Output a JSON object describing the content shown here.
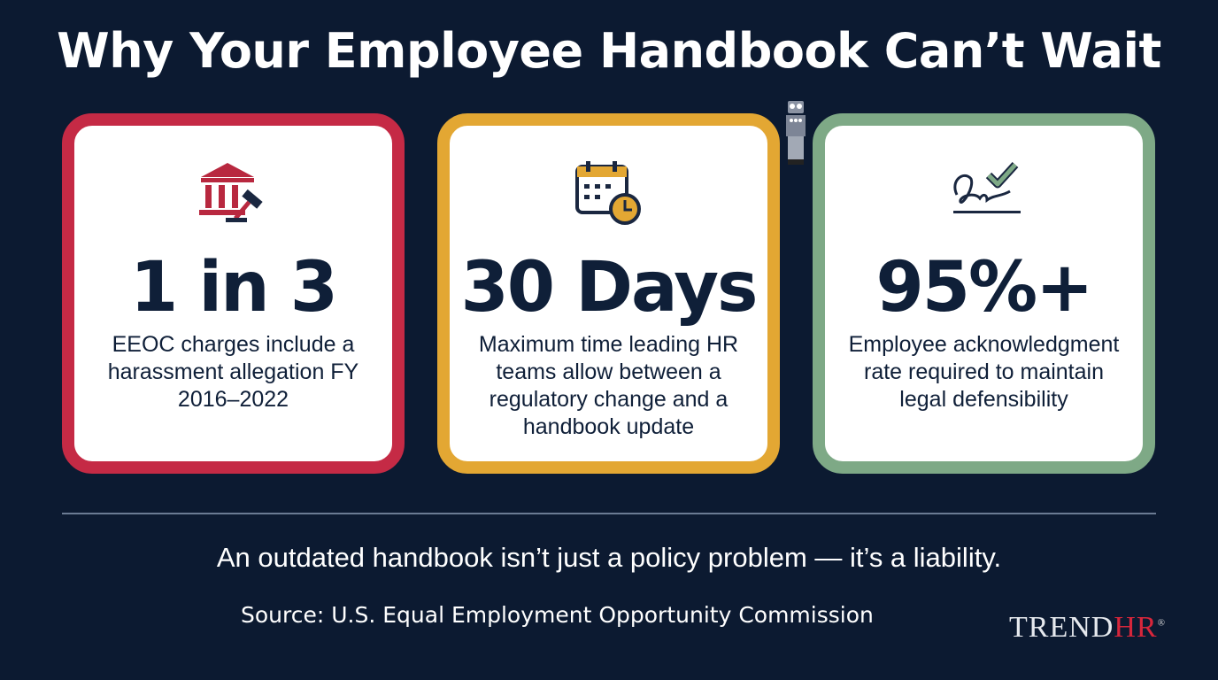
{
  "title": "Why Your Employee Handbook Can’t Wait",
  "cards": [
    {
      "icon": "courthouse-gavel-icon",
      "stat": "1 in 3",
      "description": "EEOC charges include a harassment allegation FY 2016–2022",
      "color": "#c52a45"
    },
    {
      "icon": "calendar-clock-icon",
      "stat": "30 Days",
      "description": "Maximum time leading HR teams allow between a regulatory change and a handbook update",
      "color": "#e3a733"
    },
    {
      "icon": "signature-check-icon",
      "stat": "95%+",
      "description": "Employee acknowledgment rate required to maintain legal defensibility",
      "color": "#7ea986"
    }
  ],
  "tagline": "An outdated handbook isn’t just a policy problem — it’s a liability.",
  "source": "Source: U.S. Equal Employment Opportunity Commission",
  "logo": {
    "part1": "TREND",
    "part2": "HR",
    "mark": "®"
  }
}
